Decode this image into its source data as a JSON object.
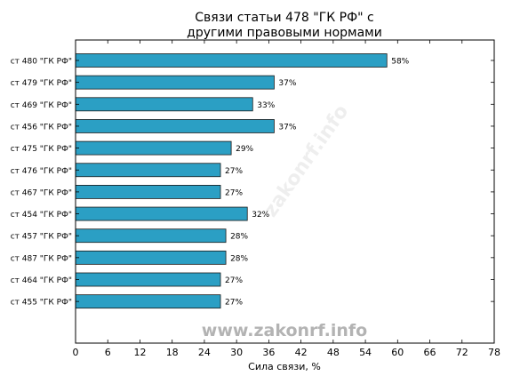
{
  "chart_data": {
    "type": "bar",
    "orientation": "horizontal",
    "title_lines": [
      "Связи статьи 478 \"ГК РФ\" с",
      "другими правовыми нормами"
    ],
    "xlabel": "Сила связи, %",
    "ylabel": "",
    "xlim": [
      0,
      78
    ],
    "xticks": [
      0,
      6,
      12,
      18,
      24,
      30,
      36,
      42,
      48,
      54,
      60,
      66,
      72,
      78
    ],
    "categories": [
      "ст 480 \"ГК РФ\"",
      "ст 479 \"ГК РФ\"",
      "ст 469 \"ГК РФ\"",
      "ст 456 \"ГК РФ\"",
      "ст 475 \"ГК РФ\"",
      "ст 476 \"ГК РФ\"",
      "ст 467 \"ГК РФ\"",
      "ст 454 \"ГК РФ\"",
      "ст 457 \"ГК РФ\"",
      "ст 487 \"ГК РФ\"",
      "ст 464 \"ГК РФ\"",
      "ст 455 \"ГК РФ\""
    ],
    "values": [
      58,
      37,
      33,
      37,
      29,
      27,
      27,
      32,
      28,
      28,
      27,
      27
    ],
    "value_labels": [
      "58%",
      "37%",
      "33%",
      "37%",
      "29%",
      "27%",
      "27%",
      "32%",
      "28%",
      "28%",
      "27%",
      "27%"
    ],
    "bar_color": "#2b9fc4",
    "grid": false,
    "legend": "none"
  },
  "watermark": {
    "main": "www.zakonrf.info",
    "diagonal": "zakonrf.info"
  }
}
